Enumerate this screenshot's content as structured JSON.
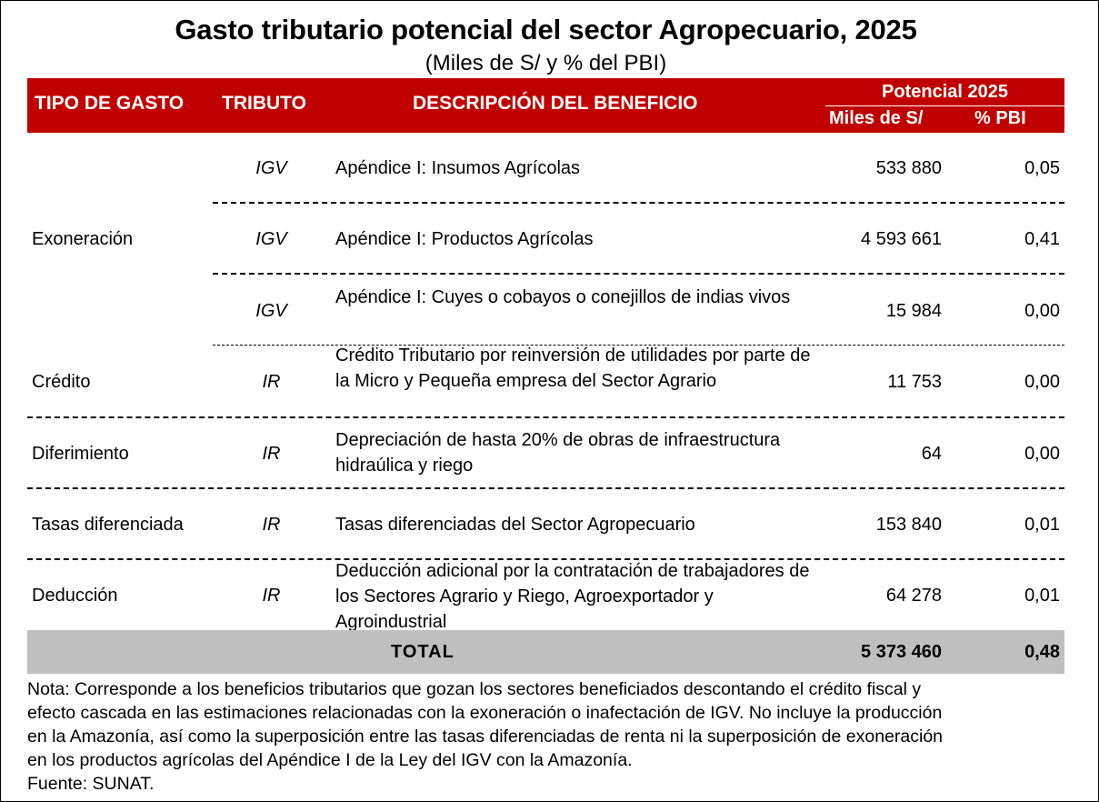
{
  "title": "Gasto tributario potencial del sector Agropecuario, 2025",
  "subtitle": "(Miles de S/ y % del PBI)",
  "header": {
    "tipo": "TIPO DE GASTO",
    "tributo": "TRIBUTO",
    "descripcion": "DESCRIPCIÓN DEL BENEFICIO",
    "potencial": "Potencial 2025",
    "miles": "Miles de S/",
    "pbi": "% PBI"
  },
  "rows": [
    {
      "tipo": "",
      "tributo": "IGV",
      "descripcion": "Apéndice I: Insumos Agrícolas",
      "miles": "533 880",
      "pbi": "0,05"
    },
    {
      "tipo": "Exoneración",
      "tributo": "IGV",
      "descripcion": "Apéndice I: Productos Agrícolas",
      "miles": "4 593 661",
      "pbi": "0,41"
    },
    {
      "tipo": "",
      "tributo": "IGV",
      "descripcion": "Apéndice I: Cuyes o cobayos o conejillos de indias vivos",
      "miles": "15 984",
      "pbi": "0,00"
    },
    {
      "tipo": "Crédito",
      "tributo": "IR",
      "descripcion": "Crédito Tributario por reinversión de utilidades por parte de la Micro y Pequeña empresa del Sector Agrario",
      "miles": "11 753",
      "pbi": "0,00"
    },
    {
      "tipo": "Diferimiento",
      "tributo": "IR",
      "descripcion": "Depreciación de hasta 20% de obras de infraestructura hidraúlica y riego",
      "miles": "64",
      "pbi": "0,00"
    },
    {
      "tipo": "Tasas diferenciada",
      "tributo": "IR",
      "descripcion": "Tasas diferenciadas del Sector Agropecuario",
      "miles": "153 840",
      "pbi": "0,01"
    },
    {
      "tipo": "Deducción",
      "tributo": "IR",
      "descripcion": "Deducción adicional por la contratación de trabajadores de los Sectores Agrario y Riego, Agroexportador y Agroindustrial",
      "miles": "64 278",
      "pbi": "0,01"
    }
  ],
  "total": {
    "label": "TOTAL",
    "miles": "5 373 460",
    "pbi": "0,48"
  },
  "note": [
    "Nota: Corresponde a los beneficios tributarios que gozan los sectores beneficiados descontando el crédito fiscal y",
    "efecto cascada en las estimaciones relacionadas con la exoneración o inafectación de IGV. No incluye la producción",
    "en la Amazonía, así como la superposición entre las tasas diferenciadas de renta ni la superposición de exoneración",
    "en los productos agrícolas del Apéndice I de la Ley del IGV con la Amazonía."
  ],
  "source": "Fuente: SUNAT.",
  "colors": {
    "header": "#c00000",
    "total": "#bfbfbf"
  }
}
